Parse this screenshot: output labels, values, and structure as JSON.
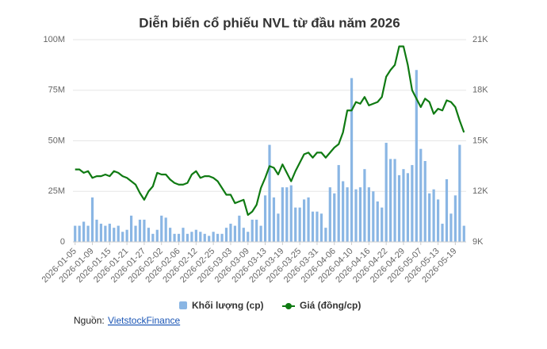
{
  "chart_data": {
    "type": "combo",
    "title": "Diễn biến cổ phiếu NVL từ đầu năm 2026",
    "categories": [
      "2026-01-05",
      null,
      null,
      null,
      "2026-01-09",
      null,
      null,
      null,
      "2026-01-15",
      null,
      null,
      null,
      "2026-01-21",
      null,
      null,
      null,
      "2026-01-27",
      null,
      null,
      null,
      "2026-02-02",
      null,
      null,
      null,
      "2026-02-06",
      null,
      null,
      null,
      "2026-02-12",
      null,
      null,
      null,
      "2026-02-25",
      null,
      null,
      null,
      "2026-03-03",
      null,
      null,
      null,
      "2026-03-09",
      null,
      null,
      null,
      "2026-03-13",
      null,
      null,
      null,
      "2026-03-19",
      null,
      null,
      null,
      "2026-03-25",
      null,
      null,
      null,
      "2026-03-31",
      null,
      null,
      null,
      "2026-04-06",
      null,
      null,
      null,
      "2026-04-10",
      null,
      null,
      null,
      "2026-04-16",
      null,
      null,
      null,
      "2026-04-22",
      null,
      null,
      null,
      "2026-04-29",
      null,
      null,
      null,
      "2026-05-07",
      null,
      null,
      null,
      "2026-05-13",
      null,
      null,
      null,
      "2026-05-19",
      null,
      null
    ],
    "series": [
      {
        "name": "Khối lượng (cp)",
        "type": "bar",
        "color": "#8ab6e4",
        "values": [
          8000000,
          8000000,
          10000000,
          8000000,
          22000000,
          11000000,
          9000000,
          8000000,
          9000000,
          7000000,
          8000000,
          5000000,
          6000000,
          13000000,
          8000000,
          11000000,
          11000000,
          7000000,
          4000000,
          6000000,
          13000000,
          12000000,
          7000000,
          4000000,
          4000000,
          7000000,
          4000000,
          5000000,
          6000000,
          5000000,
          4000000,
          3000000,
          5000000,
          4000000,
          4000000,
          7000000,
          9000000,
          8000000,
          13000000,
          7000000,
          5000000,
          11000000,
          11000000,
          8000000,
          23000000,
          48000000,
          22000000,
          14000000,
          27000000,
          27000000,
          28000000,
          17000000,
          17000000,
          21000000,
          22000000,
          15000000,
          15000000,
          14000000,
          7000000,
          27000000,
          24000000,
          38000000,
          30000000,
          27000000,
          81000000,
          26000000,
          27000000,
          36000000,
          27000000,
          25000000,
          20000000,
          17000000,
          49000000,
          41000000,
          41000000,
          33000000,
          36000000,
          34000000,
          38000000,
          85000000,
          46000000,
          40000000,
          24000000,
          26000000,
          21000000,
          9000000,
          31000000,
          14000000,
          23000000,
          48000000,
          8000000
        ]
      },
      {
        "name": "Giá (đồng/cp)",
        "type": "line",
        "axis": "y2",
        "color": "#0f7a12",
        "values": [
          13300,
          13300,
          13100,
          13200,
          12800,
          12900,
          12900,
          13000,
          12900,
          13200,
          13100,
          12900,
          12800,
          12600,
          12400,
          11900,
          11500,
          12000,
          12300,
          13100,
          13000,
          13000,
          12700,
          12500,
          12400,
          12400,
          12500,
          13000,
          13200,
          12800,
          12900,
          12900,
          12800,
          12600,
          12200,
          11800,
          11800,
          11300,
          11400,
          11500,
          10600,
          10800,
          11200,
          12200,
          12800,
          13500,
          13400,
          13000,
          13600,
          13100,
          12600,
          13200,
          13700,
          14200,
          14300,
          14000,
          14300,
          14300,
          14000,
          14300,
          14600,
          14800,
          15500,
          16800,
          16800,
          17300,
          17200,
          17600,
          17100,
          17200,
          17300,
          17600,
          18800,
          19200,
          19500,
          20600,
          20600,
          19500,
          18000,
          17500,
          17000,
          17500,
          17300,
          16600,
          16900,
          16800,
          17400,
          17300,
          17000,
          16200,
          15500
        ]
      }
    ],
    "ylim": [
      0,
      100000000
    ],
    "yticks": [
      {
        "value": 0,
        "label": "0"
      },
      {
        "value": 25000000,
        "label": "25M"
      },
      {
        "value": 50000000,
        "label": "50M"
      },
      {
        "value": 75000000,
        "label": "75M"
      },
      {
        "value": 100000000,
        "label": "100M"
      }
    ],
    "y2lim": [
      9000,
      21000
    ],
    "y2ticks": [
      {
        "value": 9000,
        "label": "9K"
      },
      {
        "value": 12000,
        "label": "12K"
      },
      {
        "value": 15000,
        "label": "15K"
      },
      {
        "value": 18000,
        "label": "18K"
      },
      {
        "value": 21000,
        "label": "21K"
      }
    ],
    "grid": true,
    "legend": "bottom"
  },
  "source": {
    "label": "Nguồn:",
    "link": "VietstockFinance"
  }
}
